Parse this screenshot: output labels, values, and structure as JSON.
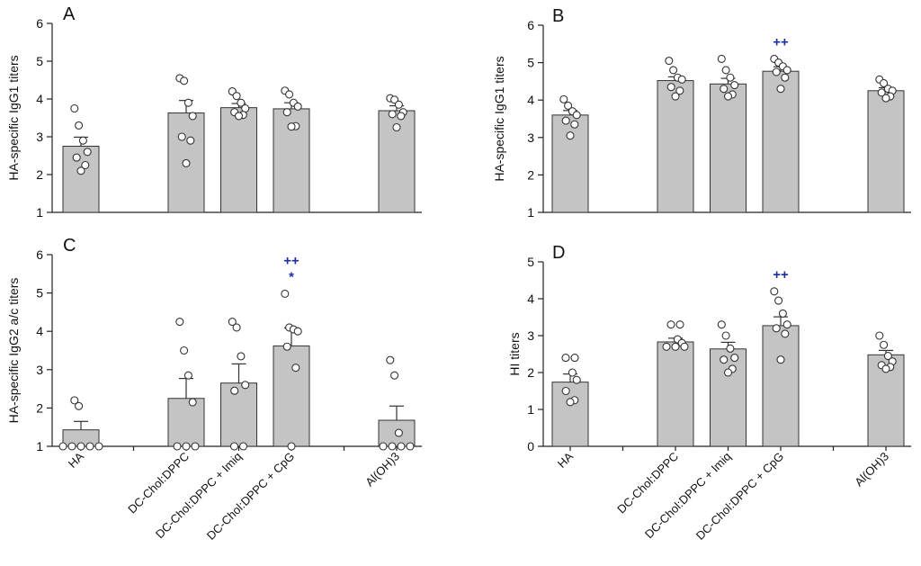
{
  "chart_data": [
    {
      "panel": "A",
      "type": "bar",
      "ylabel": "HA-specific IgG1 titers",
      "ylim": [
        1,
        6
      ],
      "yticks": [
        1,
        2,
        3,
        4,
        5,
        6
      ],
      "categories": [
        "HA",
        "",
        "DC-Chol:DPPC",
        "DC-Chol:DPPC + Imiq",
        "DC-Chol:DPPC + CpG",
        "",
        "Al(OH)3"
      ],
      "values": [
        2.75,
        null,
        3.63,
        3.77,
        3.74,
        null,
        3.69
      ],
      "errors": [
        0.24,
        null,
        0.33,
        0.11,
        0.16,
        null,
        0.13
      ],
      "points": [
        [
          3.75,
          3.3,
          2.9,
          2.6,
          2.45,
          2.25,
          2.1
        ],
        [],
        [
          4.55,
          4.48,
          3.9,
          3.55,
          3.0,
          2.9,
          2.3
        ],
        [
          4.2,
          4.08,
          3.9,
          3.75,
          3.65,
          3.58,
          3.55
        ],
        [
          4.22,
          4.12,
          3.9,
          3.8,
          3.65,
          3.28,
          3.27
        ],
        [],
        [
          4.02,
          3.98,
          3.85,
          3.65,
          3.6,
          3.55,
          3.25
        ]
      ],
      "significance": [
        "",
        "",
        "",
        "",
        "",
        "",
        ""
      ]
    },
    {
      "panel": "B",
      "type": "bar",
      "ylabel": "HA-specific IgG1 titers",
      "ylim": [
        1,
        6
      ],
      "yticks": [
        1,
        2,
        3,
        4,
        5,
        6
      ],
      "categories": [
        "HA",
        "",
        "DC-Chol:DPPC",
        "DC-Chol:DPPC + Imiq",
        "DC-Chol:DPPC + CpG",
        "",
        "Al(OH)3"
      ],
      "values": [
        3.6,
        null,
        4.52,
        4.43,
        4.77,
        null,
        4.25
      ],
      "errors": [
        0.12,
        null,
        0.1,
        0.15,
        0.12,
        null,
        0.08
      ],
      "points": [
        [
          4.02,
          3.85,
          3.7,
          3.6,
          3.45,
          3.35,
          3.05
        ],
        [],
        [
          5.05,
          4.8,
          4.6,
          4.55,
          4.35,
          4.25,
          4.1
        ],
        [
          5.1,
          4.8,
          4.6,
          4.4,
          4.3,
          4.15,
          4.1
        ],
        [
          5.1,
          5.0,
          4.9,
          4.8,
          4.75,
          4.6,
          4.3
        ],
        [],
        [
          4.55,
          4.45,
          4.3,
          4.25,
          4.2,
          4.1,
          4.05
        ]
      ],
      "significance": [
        "",
        "",
        "",
        "",
        "++",
        "",
        ""
      ]
    },
    {
      "panel": "C",
      "type": "bar",
      "ylabel": "HA-specific IgG2 a/c  titers",
      "ylim": [
        1,
        6
      ],
      "yticks": [
        1,
        2,
        3,
        4,
        5,
        6
      ],
      "categories": [
        "HA",
        "",
        "DC-Chol:DPPC",
        "DC-Chol:DPPC + Imiq",
        "DC-Chol:DPPC + CpG",
        "",
        "Al(OH)3"
      ],
      "values": [
        1.43,
        null,
        2.25,
        2.65,
        3.62,
        null,
        1.68
      ],
      "errors": [
        0.22,
        null,
        0.52,
        0.5,
        0.47,
        null,
        0.37
      ],
      "points": [
        [
          2.2,
          2.05,
          1.0,
          1.0,
          1.0,
          1.0,
          1.0
        ],
        [],
        [
          4.25,
          3.5,
          2.85,
          2.15,
          1.0,
          1.0,
          1.0
        ],
        [
          4.25,
          4.1,
          3.35,
          2.6,
          2.45,
          1.0,
          1.0
        ],
        [
          4.98,
          4.1,
          4.05,
          4.0,
          3.6,
          3.05,
          1.0
        ],
        [],
        [
          3.25,
          2.85,
          1.35,
          1.0,
          1.0,
          1.0,
          1.0
        ]
      ],
      "significance": [
        "",
        "",
        "",
        "",
        "++|*",
        "",
        ""
      ]
    },
    {
      "panel": "D",
      "type": "bar",
      "ylabel": "HI titers",
      "ylim": [
        0,
        5
      ],
      "yticks": [
        0,
        1,
        2,
        3,
        4,
        5
      ],
      "categories": [
        "HA",
        "",
        "DC-Chol:DPPC",
        "DC-Chol:DPPC + Imiq",
        "DC-Chol:DPPC + CpG",
        "",
        "Al(OH)3"
      ],
      "values": [
        1.74,
        null,
        2.83,
        2.64,
        3.27,
        null,
        2.48
      ],
      "errors": [
        0.22,
        null,
        0.1,
        0.18,
        0.24,
        null,
        0.12
      ],
      "points": [
        [
          2.4,
          2.4,
          2.0,
          1.8,
          1.5,
          1.25,
          1.2
        ],
        [],
        [
          3.3,
          3.3,
          2.9,
          2.8,
          2.7,
          2.7,
          2.7
        ],
        [
          3.3,
          3.0,
          2.65,
          2.4,
          2.35,
          2.1,
          2.0
        ],
        [
          4.2,
          3.95,
          3.6,
          3.3,
          3.2,
          3.05,
          2.35
        ],
        [],
        [
          3.0,
          2.75,
          2.45,
          2.3,
          2.2,
          2.15,
          2.1
        ]
      ],
      "significance": [
        "",
        "",
        "",
        "",
        "++",
        "",
        ""
      ]
    }
  ]
}
